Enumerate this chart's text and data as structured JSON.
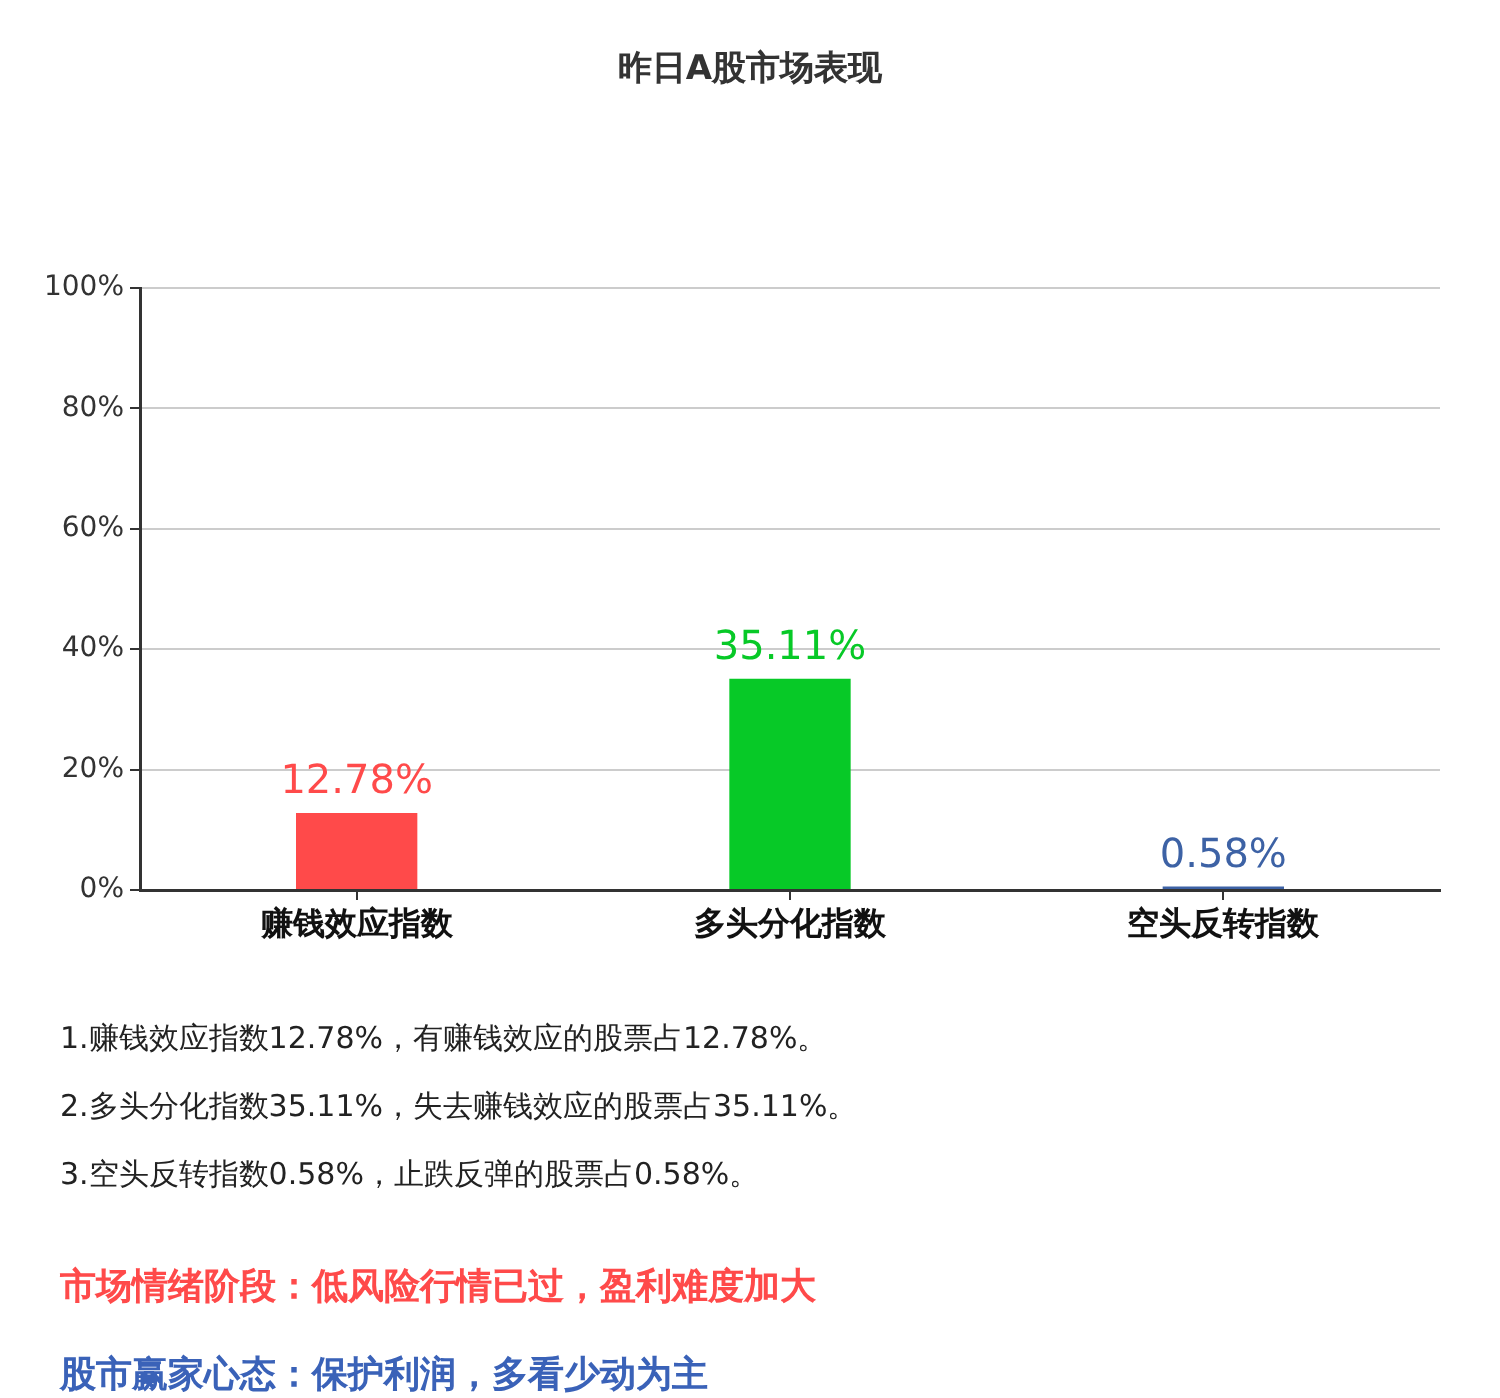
{
  "chart_data": {
    "type": "bar",
    "title": "昨日A股市场表现",
    "categories": [
      "赚钱效应指数",
      "多头分化指数",
      "空头反转指数"
    ],
    "values": [
      12.78,
      35.11,
      0.58
    ],
    "colors": [
      "#ff4a4a",
      "#07c927",
      "#3d62a5"
    ],
    "value_labels": [
      "12.78%",
      "35.11%",
      "0.58%"
    ],
    "ylim": [
      0,
      100
    ],
    "yticks": [
      {
        "value": 0,
        "label": "0%"
      },
      {
        "value": 20,
        "label": "20%"
      },
      {
        "value": 40,
        "label": "40%"
      },
      {
        "value": 60,
        "label": "60%"
      },
      {
        "value": 80,
        "label": "80%"
      },
      {
        "value": 100,
        "label": "100%"
      }
    ],
    "grid": "y",
    "annotations": [
      "1.赚钱效应指数12.78%，有赚钱效应的股票占12.78%。",
      "2.多头分化指数35.11%，失去赚钱效应的股票占35.11%。",
      "3.空头反转指数0.58%，止跌反弹的股票占0.58%。",
      "市场情绪阶段：低风险行情已过，盈利难度加大",
      "股市赢家心态：保护利润，多看少动为主"
    ]
  }
}
